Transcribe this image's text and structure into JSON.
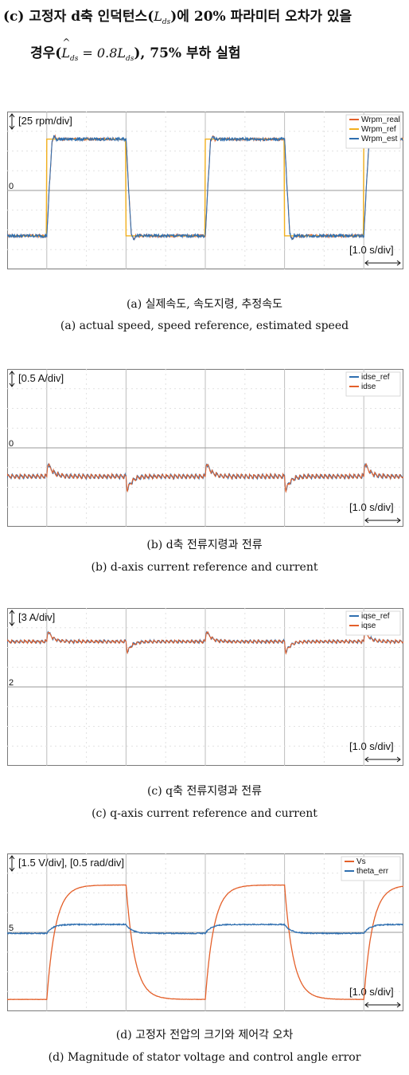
{
  "heading": {
    "line1_prefix": "(c) 고정자 d축 인덕턴스(",
    "line1_sym": "L",
    "line1_sub": "ds",
    "line1_suffix": ")에 20% 파라미터 오차가 있을",
    "line2_prefix": "경우(",
    "line2_lhs": "L",
    "line2_lhs_sub": "ds",
    "line2_eq": " = 0.8",
    "line2_rhs": "L",
    "line2_rhs_sub": "ds",
    "line2_suffix": "), 75% 부하 실험"
  },
  "chart_data": [
    {
      "type": "line",
      "id": "a",
      "scale_label": "[25 rpm/div]",
      "time_label": "[1.0 s/div]",
      "zero_marker": "0",
      "caption_kr": "(a) 실제속도, 속도지령, 추정속도",
      "caption_en": "(a) actual speed, speed reference, estimated speed",
      "x_unit": "div",
      "x_range": [
        0,
        10
      ],
      "y_unit": "div",
      "y_range": [
        -4,
        4
      ],
      "square_wave": {
        "high": 2.6,
        "low": -2.3,
        "rising_edges": [
          1.0,
          5.0,
          9.0
        ],
        "falling_edges": [
          3.0,
          7.0
        ],
        "start_level": "low"
      },
      "series": [
        {
          "name": "Wrpm_real",
          "color": "#e4602a",
          "kind": "filtered",
          "noise": 0.06
        },
        {
          "name": "Wrpm_ref",
          "color": "#f2b01e",
          "kind": "ideal"
        },
        {
          "name": "Wrpm_est",
          "color": "#2f6fb0",
          "kind": "filtered",
          "noise": 0.08
        }
      ]
    },
    {
      "type": "line",
      "id": "b",
      "scale_label": "[0.5 A/div]",
      "time_label": "[1.0 s/div]",
      "zero_marker": "0",
      "caption_kr": "(b) d축 전류지령과 전류",
      "caption_en": "(b) d-axis current reference and current",
      "x_unit": "div",
      "x_range": [
        0,
        10
      ],
      "y_unit": "div",
      "y_range": [
        -4,
        4
      ],
      "baseline": -1.45,
      "ripple": 0.22,
      "events": [
        {
          "t": 1.0,
          "dir": 1,
          "amp": 0.9
        },
        {
          "t": 3.0,
          "dir": -1,
          "amp": 0.9
        },
        {
          "t": 5.0,
          "dir": 1,
          "amp": 0.9
        },
        {
          "t": 7.0,
          "dir": -1,
          "amp": 0.9
        },
        {
          "t": 9.0,
          "dir": 1,
          "amp": 0.9
        }
      ],
      "series": [
        {
          "name": "idse_ref",
          "color": "#2f6fb0"
        },
        {
          "name": "idse",
          "color": "#e4602a"
        }
      ]
    },
    {
      "type": "line",
      "id": "c",
      "scale_label": "[3 A/div]",
      "time_label": "[1.0 s/div]",
      "zero_marker": "2",
      "caption_kr": "(c) q축 전류지령과 전류",
      "caption_en": "(c) q-axis current reference and current",
      "x_unit": "div",
      "x_range": [
        0,
        10
      ],
      "y_unit": "div",
      "y_range": [
        -4,
        4
      ],
      "baseline": 2.3,
      "ripple": 0.15,
      "events": [
        {
          "t": 1.0,
          "dir": 1,
          "amp": 0.7
        },
        {
          "t": 3.0,
          "dir": -1,
          "amp": 0.7
        },
        {
          "t": 5.0,
          "dir": 1,
          "amp": 0.7
        },
        {
          "t": 7.0,
          "dir": -1,
          "amp": 0.7
        },
        {
          "t": 9.0,
          "dir": 1,
          "amp": 0.7
        }
      ],
      "series": [
        {
          "name": "iqse_ref",
          "color": "#2f6fb0"
        },
        {
          "name": "iqse",
          "color": "#e4602a"
        }
      ]
    },
    {
      "type": "line",
      "id": "d",
      "scale_label": "[1.5 V/div], [0.5 rad/div]",
      "time_label": "[1.0 s/div]",
      "zero_marker": "5",
      "caption_kr": "(d) 고정자 전압의 크기와 제어각 오차",
      "caption_en": "(d) Magnitude of stator voltage and control angle error",
      "x_unit": "div",
      "x_range": [
        0,
        10
      ],
      "y_unit": "div",
      "y_range": [
        -4,
        4
      ],
      "vs": {
        "high": 2.4,
        "low": -3.4,
        "rising_edges": [
          1.0,
          5.0,
          9.0
        ],
        "falling_edges": [
          3.0,
          7.0
        ],
        "start_level": "low",
        "tau": 0.22
      },
      "theta": {
        "high": 0.4,
        "low": -0.05,
        "rising_edges": [
          1.0,
          5.0,
          9.0
        ],
        "falling_edges": [
          3.0,
          7.0
        ],
        "start_level": "low",
        "tau": 0.15
      },
      "series": [
        {
          "name": "Vs",
          "color": "#e4602a"
        },
        {
          "name": "theta_err",
          "color": "#2f6fb0"
        }
      ]
    }
  ]
}
